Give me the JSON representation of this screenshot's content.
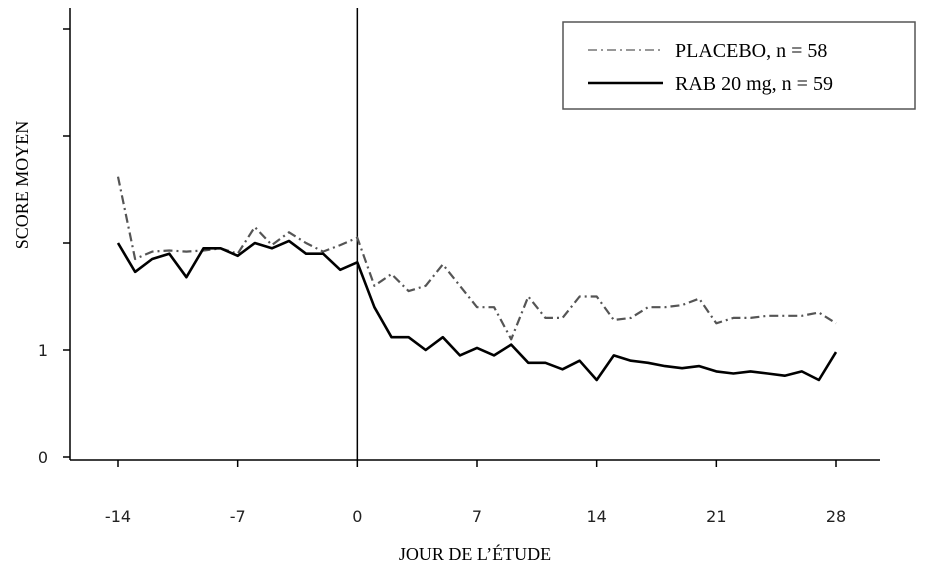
{
  "chart_data": {
    "type": "line",
    "xlabel": "JOUR DE L’ÉTUDE",
    "ylabel": "SCORE MOYEN",
    "xlim": [
      -14,
      28
    ],
    "ylim": [
      0,
      4
    ],
    "x_ticks": [
      -14,
      -7,
      0,
      7,
      14,
      21,
      28
    ],
    "y_ticks": [
      0,
      1,
      2,
      3,
      4
    ],
    "y_tick_labels": [
      "0",
      "1",
      "",
      "",
      ""
    ],
    "reference_line_x": 0,
    "legend_position": "top-right",
    "series": [
      {
        "name": "PLACEBO, n = 58",
        "style": "dash-dot",
        "x": [
          -14,
          -13,
          -12,
          -11,
          -10,
          -9,
          -8,
          -7,
          -6,
          -5,
          -4,
          -3,
          -2,
          -1,
          0,
          1,
          2,
          3,
          4,
          5,
          6,
          7,
          8,
          9,
          10,
          11,
          12,
          13,
          14,
          15,
          16,
          17,
          18,
          19,
          20,
          21,
          22,
          23,
          24,
          25,
          26,
          27,
          28
        ],
        "y": [
          2.62,
          1.85,
          1.92,
          1.93,
          1.92,
          1.93,
          1.95,
          1.9,
          2.15,
          1.98,
          2.1,
          2.0,
          1.92,
          1.98,
          2.05,
          1.6,
          1.71,
          1.55,
          1.6,
          1.8,
          1.6,
          1.4,
          1.4,
          1.1,
          1.5,
          1.3,
          1.3,
          1.5,
          1.5,
          1.28,
          1.3,
          1.4,
          1.4,
          1.42,
          1.48,
          1.25,
          1.3,
          1.3,
          1.32,
          1.32,
          1.32,
          1.35,
          1.25
        ]
      },
      {
        "name": "RAB 20 mg, n = 59",
        "style": "solid",
        "x": [
          -14,
          -13,
          -12,
          -11,
          -10,
          -9,
          -8,
          -7,
          -6,
          -5,
          -4,
          -3,
          -2,
          -1,
          0,
          1,
          2,
          3,
          4,
          5,
          6,
          7,
          8,
          9,
          10,
          11,
          12,
          13,
          14,
          15,
          16,
          17,
          18,
          19,
          20,
          21,
          22,
          23,
          24,
          25,
          26,
          27,
          28
        ],
        "y": [
          2.0,
          1.73,
          1.85,
          1.9,
          1.68,
          1.95,
          1.95,
          1.88,
          2.0,
          1.95,
          2.02,
          1.9,
          1.9,
          1.75,
          1.82,
          1.4,
          1.12,
          1.12,
          1.0,
          1.12,
          0.95,
          1.02,
          0.95,
          1.05,
          0.88,
          0.88,
          0.82,
          0.9,
          0.72,
          0.95,
          0.9,
          0.88,
          0.85,
          0.83,
          0.85,
          0.8,
          0.78,
          0.8,
          0.78,
          0.76,
          0.8,
          0.72,
          0.98
        ]
      }
    ]
  }
}
